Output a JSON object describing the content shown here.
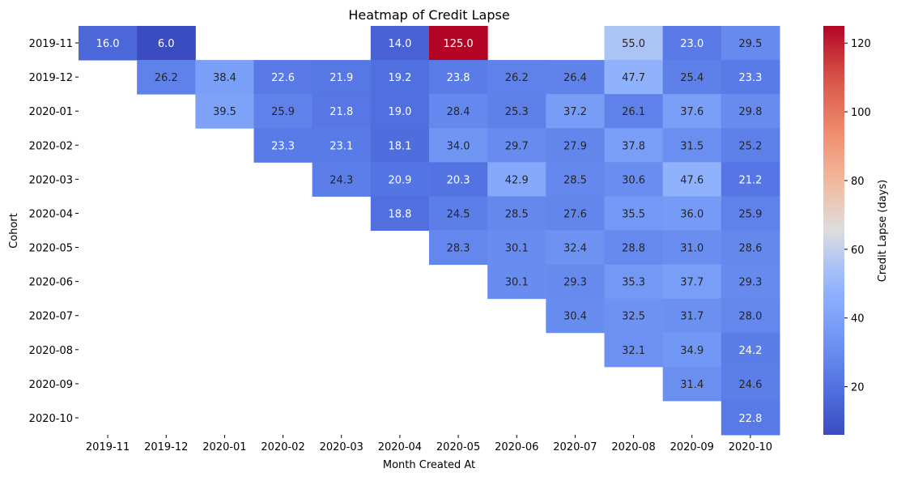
{
  "chart_data": {
    "type": "heatmap",
    "title": "Heatmap of Credit Lapse",
    "xlabel": "Month Created At",
    "ylabel": "Cohort",
    "colorbar_label": "Credit Lapse (days)",
    "colormap": "coolwarm",
    "vmin": 6.0,
    "vmax": 125.0,
    "colorbar_ticks": [
      20,
      40,
      60,
      80,
      100,
      120
    ],
    "x_categories": [
      "2019-11",
      "2019-12",
      "2020-01",
      "2020-02",
      "2020-03",
      "2020-04",
      "2020-05",
      "2020-06",
      "2020-07",
      "2020-08",
      "2020-09",
      "2020-10"
    ],
    "y_categories": [
      "2019-11",
      "2019-12",
      "2020-01",
      "2020-02",
      "2020-03",
      "2020-04",
      "2020-05",
      "2020-06",
      "2020-07",
      "2020-08",
      "2020-09",
      "2020-10"
    ],
    "values": [
      [
        16.0,
        6.0,
        null,
        null,
        null,
        14.0,
        125.0,
        null,
        null,
        55.0,
        23.0,
        29.5
      ],
      [
        null,
        26.2,
        38.4,
        22.6,
        21.9,
        19.2,
        23.8,
        26.2,
        26.4,
        47.7,
        25.4,
        23.3
      ],
      [
        null,
        null,
        39.5,
        25.9,
        21.8,
        19.0,
        28.4,
        25.3,
        37.2,
        26.1,
        37.6,
        29.8
      ],
      [
        null,
        null,
        null,
        23.3,
        23.1,
        18.1,
        34.0,
        29.7,
        27.9,
        37.8,
        31.5,
        25.2
      ],
      [
        null,
        null,
        null,
        null,
        24.3,
        20.9,
        20.3,
        42.9,
        28.5,
        30.6,
        47.6,
        21.2
      ],
      [
        null,
        null,
        null,
        null,
        null,
        18.8,
        24.5,
        28.5,
        27.6,
        35.5,
        36.0,
        25.9
      ],
      [
        null,
        null,
        null,
        null,
        null,
        null,
        28.3,
        30.1,
        32.4,
        28.8,
        31.0,
        28.6
      ],
      [
        null,
        null,
        null,
        null,
        null,
        null,
        null,
        30.1,
        29.3,
        35.3,
        37.7,
        29.3
      ],
      [
        null,
        null,
        null,
        null,
        null,
        null,
        null,
        null,
        30.4,
        32.5,
        31.7,
        28.0
      ],
      [
        null,
        null,
        null,
        null,
        null,
        null,
        null,
        null,
        null,
        32.1,
        34.9,
        24.2
      ],
      [
        null,
        null,
        null,
        null,
        null,
        null,
        null,
        null,
        null,
        null,
        31.4,
        24.6
      ],
      [
        null,
        null,
        null,
        null,
        null,
        null,
        null,
        null,
        null,
        null,
        null,
        22.8
      ]
    ]
  }
}
